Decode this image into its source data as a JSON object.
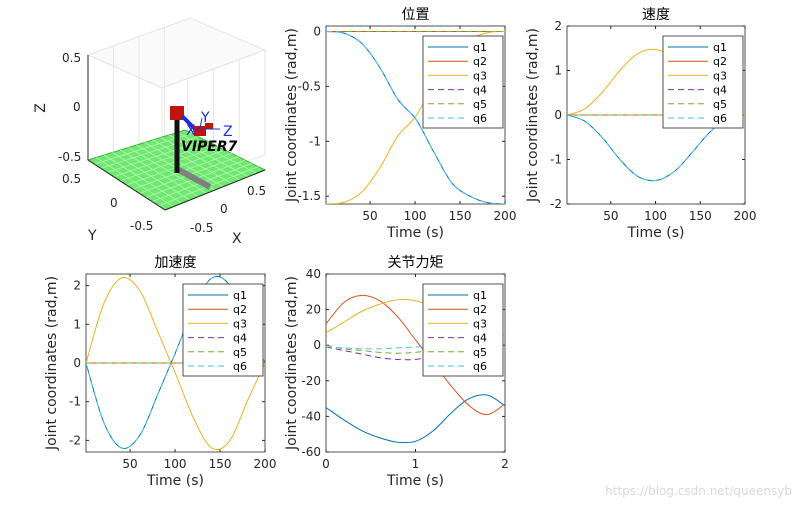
{
  "watermark": "https://blog.csdn.net/queensyb",
  "robot_view": {
    "robot_name": "VIPER7",
    "z_ticks": [
      "0.5",
      "0",
      "-0.5"
    ],
    "y_ticks": [
      "0.5",
      "0",
      "-0.5"
    ],
    "x_ticks": [
      "-0.5",
      "0",
      "0.5"
    ],
    "zlabel": "Z",
    "ylabel": "Y",
    "xlabel": "X",
    "frame_labels": [
      "X",
      "Y",
      "Z"
    ],
    "colors": {
      "floor": "#6ee86e",
      "link": "#c0140c",
      "base": "#111111",
      "arm_blue": "#1a2fd8"
    }
  },
  "legend_entries": [
    "q1",
    "q2",
    "q3",
    "q4",
    "q5",
    "q6"
  ],
  "series_colors": [
    "#0072BD",
    "#D95319",
    "#EDB120",
    "#7E2F8E",
    "#77AC30",
    "#4DBEEE"
  ],
  "series_dashed": [
    false,
    false,
    false,
    true,
    true,
    true
  ],
  "chart_data": [
    {
      "type": "line",
      "title": "位置",
      "xlabel": "Time (s)",
      "ylabel": "Joint coordinates (rad,m)",
      "xlim": [
        1,
        200
      ],
      "ylim": [
        -1.571,
        0.05
      ],
      "xticks": [
        50,
        100,
        150,
        200
      ],
      "yticks": [
        0,
        -0.5,
        -1,
        -1.5
      ],
      "xticklabels": [
        "50",
        "100",
        "150",
        "200"
      ],
      "yticklabels": [
        "0",
        "-0.5",
        "-1",
        "-1.5"
      ],
      "x": [
        1,
        21,
        41,
        61,
        81,
        101,
        121,
        141,
        161,
        181,
        200
      ],
      "series": [
        {
          "name": "q1",
          "values": [
            0,
            -0.015,
            -0.11,
            -0.33,
            -0.62,
            -0.8,
            -1.1,
            -1.38,
            -1.5,
            -1.56,
            -1.571
          ]
        },
        {
          "name": "q2",
          "values": [
            0,
            0,
            0,
            0,
            0,
            0,
            0,
            0,
            0,
            0,
            0
          ]
        },
        {
          "name": "q3",
          "values": [
            -1.571,
            -1.556,
            -1.46,
            -1.24,
            -0.95,
            -0.77,
            -0.47,
            -0.19,
            -0.07,
            -0.01,
            0
          ]
        },
        {
          "name": "q4",
          "values": [
            0,
            0,
            0,
            0,
            0,
            0,
            0,
            0,
            0,
            0,
            0
          ]
        },
        {
          "name": "q5",
          "values": [
            0,
            0,
            0,
            0,
            0,
            0,
            0,
            0,
            0,
            0,
            0
          ]
        },
        {
          "name": "q6",
          "values": [
            0,
            -0.015,
            -0.11,
            -0.33,
            -0.62,
            -0.8,
            -1.1,
            -1.38,
            -1.5,
            -1.56,
            -1.571
          ]
        }
      ],
      "legend_loc": "top-right"
    },
    {
      "type": "line",
      "title": "速度",
      "xlabel": "Time (s)",
      "ylabel": "Joint coordinates (rad,m)",
      "xlim": [
        1,
        200
      ],
      "ylim": [
        -2,
        2
      ],
      "xticks": [
        50,
        100,
        150,
        200
      ],
      "yticks": [
        2,
        1,
        0,
        -1,
        -2
      ],
      "xticklabels": [
        "50",
        "100",
        "150",
        "200"
      ],
      "yticklabels": [
        "2",
        "1",
        "0",
        "-1",
        "-2"
      ],
      "x": [
        1,
        21,
        41,
        61,
        81,
        101,
        121,
        141,
        161,
        181,
        200
      ],
      "series": [
        {
          "name": "q1",
          "values": [
            0,
            -0.14,
            -0.52,
            -1.02,
            -1.39,
            -1.47,
            -1.27,
            -0.84,
            -0.38,
            -0.07,
            0
          ]
        },
        {
          "name": "q2",
          "values": [
            0,
            0,
            0,
            0,
            0,
            0,
            0,
            0,
            0,
            0,
            0
          ]
        },
        {
          "name": "q3",
          "values": [
            0,
            0.14,
            0.52,
            1.02,
            1.39,
            1.47,
            1.27,
            0.84,
            0.38,
            0.07,
            0
          ]
        },
        {
          "name": "q4",
          "values": [
            0,
            0,
            0,
            0,
            0,
            0,
            0,
            0,
            0,
            0,
            0
          ]
        },
        {
          "name": "q5",
          "values": [
            0,
            0,
            0,
            0,
            0,
            0,
            0,
            0,
            0,
            0,
            0
          ]
        },
        {
          "name": "q6",
          "values": [
            0,
            -0.14,
            -0.52,
            -1.02,
            -1.39,
            -1.47,
            -1.27,
            -0.84,
            -0.38,
            -0.07,
            0
          ]
        }
      ],
      "legend_loc": "top-right"
    },
    {
      "type": "line",
      "title": "加速度",
      "xlabel": "Time (s)",
      "ylabel": "Joint coordinates (rad,m)",
      "xlim": [
        1,
        200
      ],
      "ylim": [
        -2.3,
        2.3
      ],
      "xticks": [
        50,
        100,
        150,
        200
      ],
      "yticks": [
        2,
        1,
        0,
        -1,
        -2
      ],
      "xticklabels": [
        "50",
        "100",
        "150",
        "200"
      ],
      "yticklabels": [
        "2",
        "1",
        "0",
        "-1",
        "-2"
      ],
      "x": [
        1,
        21,
        41,
        61,
        81,
        101,
        121,
        141,
        161,
        181,
        200
      ],
      "series": [
        {
          "name": "q1",
          "values": [
            0,
            -1.55,
            -2.2,
            -1.86,
            -0.8,
            0.3,
            1.45,
            2.2,
            2.0,
            0.95,
            0
          ]
        },
        {
          "name": "q2",
          "values": [
            0,
            0,
            0,
            0,
            0,
            0,
            0,
            0,
            0,
            0,
            0
          ]
        },
        {
          "name": "q3",
          "values": [
            0,
            1.55,
            2.2,
            1.86,
            0.8,
            -0.3,
            -1.45,
            -2.2,
            -2.0,
            -0.95,
            0
          ]
        },
        {
          "name": "q4",
          "values": [
            0,
            0,
            0,
            0,
            0,
            0,
            0,
            0,
            0,
            0,
            0
          ]
        },
        {
          "name": "q5",
          "values": [
            0,
            0,
            0,
            0,
            0,
            0,
            0,
            0,
            0,
            0,
            0
          ]
        },
        {
          "name": "q6",
          "values": [
            0,
            -1.55,
            -2.2,
            -1.86,
            -0.8,
            0.3,
            1.45,
            2.2,
            2.0,
            0.95,
            0
          ]
        }
      ],
      "legend_loc": "top-right"
    },
    {
      "type": "line",
      "title": "关节力矩",
      "xlabel": "Time (s)",
      "ylabel": "Joint coordinates (rad,m)",
      "xlim": [
        0,
        2
      ],
      "ylim": [
        -60,
        40
      ],
      "xticks": [
        0,
        1,
        2
      ],
      "yticks": [
        40,
        20,
        0,
        -20,
        -40,
        -60
      ],
      "xticklabels": [
        "0",
        "1",
        "2"
      ],
      "yticklabels": [
        "40",
        "20",
        "0",
        "-20",
        "-40",
        "-60"
      ],
      "x": [
        0,
        0.2,
        0.4,
        0.6,
        0.8,
        1.0,
        1.2,
        1.4,
        1.6,
        1.8,
        2.0
      ],
      "series": [
        {
          "name": "q1",
          "values": [
            -35,
            -42,
            -48,
            -52,
            -54.5,
            -54,
            -48,
            -38,
            -30,
            -28,
            -34
          ]
        },
        {
          "name": "q2",
          "values": [
            12,
            24,
            28,
            25,
            16,
            3,
            -10,
            -23,
            -34,
            -39,
            -33
          ]
        },
        {
          "name": "q3",
          "values": [
            7,
            13,
            19,
            23,
            25.5,
            25,
            21,
            14,
            9,
            5,
            6
          ]
        },
        {
          "name": "q4",
          "values": [
            -1,
            -3,
            -5,
            -7,
            -8,
            -8,
            -6,
            -4,
            -2,
            -0.5,
            0
          ]
        },
        {
          "name": "q5",
          "values": [
            0,
            -2,
            -3,
            -4,
            -4.5,
            -4,
            -3,
            -2,
            -1,
            0,
            0
          ]
        },
        {
          "name": "q6",
          "values": [
            -1,
            -1.5,
            -2,
            -2,
            -1.5,
            -1,
            -0.5,
            0,
            0,
            0,
            0
          ]
        }
      ],
      "legend_loc": "top-right"
    }
  ]
}
